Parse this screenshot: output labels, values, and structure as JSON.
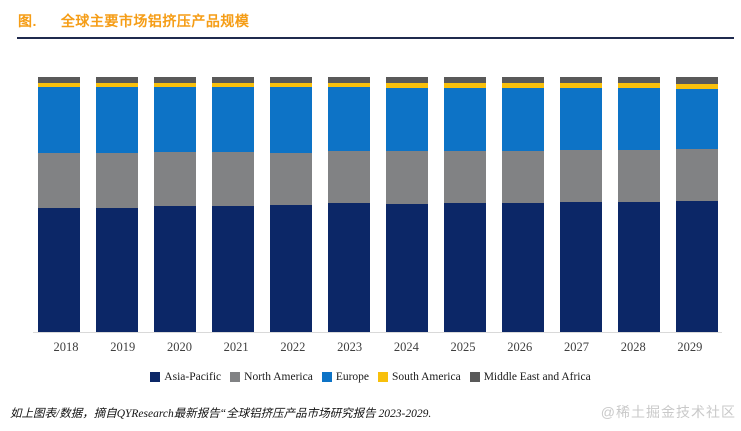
{
  "figure": {
    "prefix": "图.",
    "title": "全球主要市场铝挤压产品规模"
  },
  "chart_data": {
    "type": "bar",
    "stacked": true,
    "title": "全球主要市场铝挤压产品规模",
    "xlabel": "",
    "ylabel": "",
    "y_axis_visible": false,
    "grid": false,
    "legend_position": "bottom",
    "values_unit": "% share of total (estimated from bar heights)",
    "categories": [
      "2018",
      "2019",
      "2020",
      "2021",
      "2022",
      "2023",
      "2024",
      "2025",
      "2026",
      "2027",
      "2028",
      "2029"
    ],
    "series": [
      {
        "name": "Asia-Pacific",
        "color": "#0C2767",
        "values": [
          48.8,
          48.8,
          49.5,
          49.6,
          49.9,
          50.4,
          50.1,
          50.7,
          50.7,
          51.1,
          50.8,
          51.5
        ]
      },
      {
        "name": "North America",
        "color": "#818284",
        "values": [
          21.3,
          21.3,
          21.1,
          20.8,
          20.3,
          20.6,
          21.0,
          20.3,
          20.2,
          20.3,
          20.5,
          20.4
        ]
      },
      {
        "name": "Europe",
        "color": "#0D73C6",
        "values": [
          26.1,
          26.1,
          25.6,
          25.8,
          26.0,
          25.1,
          24.4,
          24.5,
          24.6,
          24.1,
          24.2,
          23.2
        ]
      },
      {
        "name": "South America",
        "color": "#F8C00C",
        "values": [
          1.3,
          1.3,
          1.3,
          1.3,
          1.3,
          1.4,
          2.0,
          2.0,
          2.0,
          2.0,
          2.0,
          2.3
        ]
      },
      {
        "name": "Middle East and Africa",
        "color": "#595959",
        "values": [
          2.5,
          2.5,
          2.5,
          2.5,
          2.5,
          2.5,
          2.5,
          2.5,
          2.5,
          2.5,
          2.5,
          2.6
        ]
      }
    ]
  },
  "caption": {
    "text": "如上图表/数据，摘自QYResearch最新报告“全球铝挤压产品市场研究报告 2023-2029."
  },
  "watermark": {
    "text": "@稀土掘金技术社区"
  }
}
